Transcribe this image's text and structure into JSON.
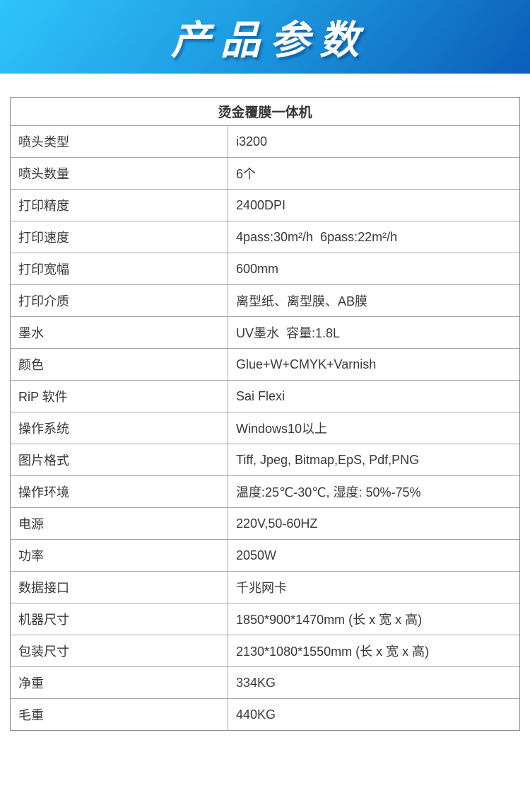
{
  "banner": {
    "title": "产品参数",
    "gradient_start": "#30c4fb",
    "gradient_end": "#0b5db9",
    "text_color": "#ffffff"
  },
  "table": {
    "title": "烫金覆膜一体机",
    "border_color": "#a6a6a6",
    "text_color": "#3a3a3a",
    "rows": [
      {
        "label": "喷头类型",
        "value": "i3200"
      },
      {
        "label": "喷头数量",
        "value": "6个"
      },
      {
        "label": "打印精度",
        "value": "2400DPI"
      },
      {
        "label": "打印速度",
        "value": "4pass:30m²/h  6pass:22m²/h"
      },
      {
        "label": "打印宽幅",
        "value": "600mm"
      },
      {
        "label": "打印介质",
        "value": "离型纸、离型膜、AB膜"
      },
      {
        "label": "墨水",
        "value": "UV墨水  容量:1.8L"
      },
      {
        "label": "颜色",
        "value": "Glue+W+CMYK+Varnish"
      },
      {
        "label": "RiP 软件",
        "value": "Sai Flexi"
      },
      {
        "label": "操作系统",
        "value": "Windows10以上"
      },
      {
        "label": "图片格式",
        "value": "Tiff, Jpeg, Bitmap,EpS, Pdf,PNG"
      },
      {
        "label": "操作环境",
        "value": "温度:25℃-30℃, 湿度: 50%-75%"
      },
      {
        "label": "电源",
        "value": "220V,50-60HZ"
      },
      {
        "label": "功率",
        "value": "2050W"
      },
      {
        "label": "数据接口",
        "value": "千兆网卡"
      },
      {
        "label": "机器尺寸",
        "value": "1850*900*1470mm (长 x 宽 x 高)"
      },
      {
        "label": "包装尺寸",
        "value": "2130*1080*1550mm (长 x 宽 x 高)"
      },
      {
        "label": "净重",
        "value": "334KG"
      },
      {
        "label": "毛重",
        "value": "440KG"
      }
    ]
  }
}
